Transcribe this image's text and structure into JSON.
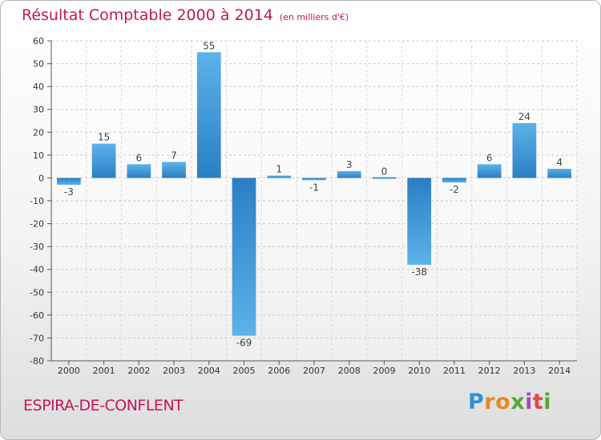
{
  "header": {
    "title": "Résultat Comptable 2000 à 2014",
    "unit": "(en milliers d'€)"
  },
  "footer": {
    "commune": "ESPIRA-DE-CONFLENT",
    "logo_letters": [
      "P",
      "r",
      "o",
      "x",
      "i",
      "t",
      "i"
    ],
    "logo_colors": [
      "#2f8fd8",
      "#e58a1f",
      "#e58a1f",
      "#5aa531",
      "#9c4fb8",
      "#e54545",
      "#5aa531"
    ]
  },
  "chart_data": {
    "type": "bar",
    "title": "Résultat Comptable 2000 à 2014",
    "categories": [
      "2000",
      "2001",
      "2002",
      "2003",
      "2004",
      "2005",
      "2006",
      "2007",
      "2008",
      "2009",
      "2010",
      "2011",
      "2012",
      "2013",
      "2014"
    ],
    "values": [
      -3,
      15,
      6,
      7,
      55,
      -69,
      1,
      -1,
      3,
      0,
      -38,
      -2,
      6,
      24,
      4
    ],
    "ylim": [
      -80,
      60
    ],
    "yticks": [
      60,
      50,
      40,
      30,
      20,
      10,
      0,
      -10,
      -20,
      -30,
      -40,
      -50,
      -60,
      -70,
      -80
    ],
    "xlabel": "",
    "ylabel": "",
    "grid": true,
    "bar_color": "#3a93d6"
  }
}
